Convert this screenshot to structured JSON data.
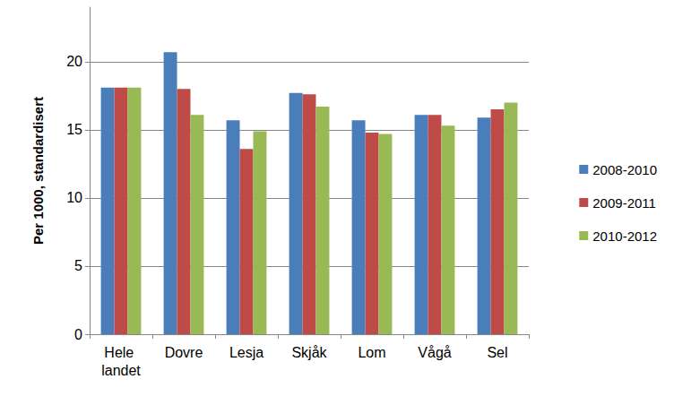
{
  "chart_data": {
    "type": "bar",
    "y_label": "Per 1000, standardisert",
    "categories": [
      "Hele landet",
      "Dovre",
      "Lesja",
      "Skjåk",
      "Lom",
      "Vågå",
      "Sel"
    ],
    "series": [
      {
        "name": "2008-2010",
        "color": "#4a7ebb",
        "values": [
          18.1,
          20.7,
          15.7,
          17.7,
          15.7,
          16.1,
          15.9
        ]
      },
      {
        "name": "2009-2011",
        "color": "#be4b48",
        "values": [
          18.1,
          18.0,
          13.6,
          17.6,
          14.8,
          16.1,
          16.5
        ]
      },
      {
        "name": "2010-2012",
        "color": "#98b954",
        "values": [
          18.1,
          16.1,
          14.9,
          16.7,
          14.7,
          15.3,
          17.0
        ]
      }
    ],
    "ylim": [
      0,
      24
    ],
    "yticks": [
      0,
      5,
      10,
      15,
      20
    ],
    "grid": true,
    "legend": "right"
  }
}
